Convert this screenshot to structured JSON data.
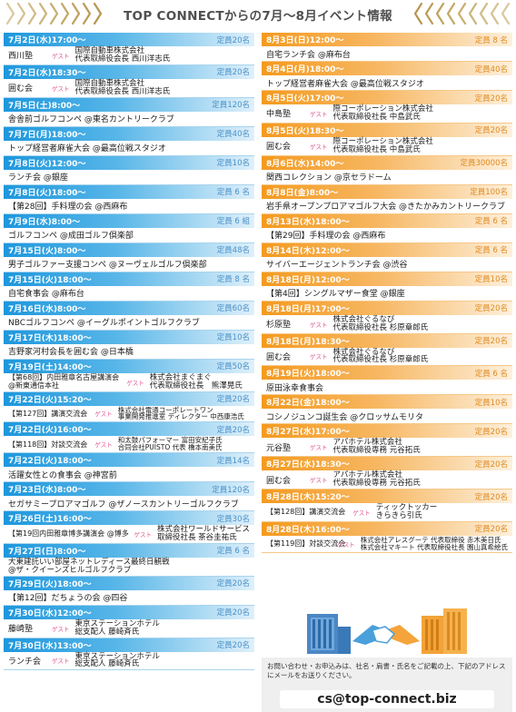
{
  "header": {
    "title": "TOP CONNECTからの7月〜8月イベント情報"
  },
  "left_events": [
    {
      "date": "7月2日(水)17:00〜",
      "capacity": "定員20名",
      "title": "西川塾",
      "guest": "ゲスト",
      "speaker": [
        "国際自動車株式会社",
        "代表取締役会長 西川洋志氏"
      ]
    },
    {
      "date": "7月2日(水)18:30〜",
      "capacity": "定員20名",
      "title": "囲む会",
      "guest": "ゲスト",
      "speaker": [
        "国際自動車株式会社",
        "代表取締役会長 西川洋志氏"
      ]
    },
    {
      "date": "7月5日(土)8:00〜",
      "capacity": "定員120名",
      "title": "舎舎前ゴルフコンペ @東名カントリークラブ"
    },
    {
      "date": "7月7日(月)18:00〜",
      "capacity": "定員40名",
      "title": "トップ経営者麻雀大会 @最高位戦スタジオ"
    },
    {
      "date": "7月8日(火)12:00〜",
      "capacity": "定員10名",
      "title": "ランチ会 @銀座"
    },
    {
      "date": "7月8日(火)18:00〜",
      "capacity": "定員 6 名",
      "title": "【第28回】手料理の会 @西麻布"
    },
    {
      "date": "7月9日(水)8:00〜",
      "capacity": "定員 6 組",
      "title": "ゴルフコンペ @成田ゴルフ倶楽部"
    },
    {
      "date": "7月15日(火)8:00〜",
      "capacity": "定員48名",
      "title": "男子ゴルファー支援コンペ @ヌーヴェルゴルフ倶楽部"
    },
    {
      "date": "7月15日(火)18:00〜",
      "capacity": "定員 8 名",
      "title": "自宅食事会 @麻布台"
    },
    {
      "date": "7月16日(水)8:00〜",
      "capacity": "定員60名",
      "title": "NBCゴルフコンペ @イーグルポイントゴルフクラブ"
    },
    {
      "date": "7月17日(木)18:00〜",
      "capacity": "定員10名",
      "title": "吉野家河村会長を囲む会 @日本橋"
    },
    {
      "date": "7月19日(土)14:00〜",
      "capacity": "定員50名",
      "title": [
        "【第68回】内田雅章名古屋講演会",
        "@新東通信本社"
      ],
      "guest": "ゲスト",
      "speaker": [
        "株式会社まぐまぐ",
        "代表取締役社長　熊澤晃氏"
      ]
    },
    {
      "date": "7月22日(火)15:20〜",
      "capacity": "定員20名",
      "title": "【第127回】講演交流会",
      "guest": "ゲスト",
      "speaker": [
        "株式会社電通コーポレートワン",
        "事業開発推進室 ディレクター 中西康浩氏"
      ]
    },
    {
      "date": "7月22日(火)16:00〜",
      "capacity": "定員20名",
      "title": "【第118回】対談交流会",
      "guest": "ゲスト",
      "speaker": [
        "和太鼓パフォーマー 富田安紀子氏",
        "合同会社PUISTO 代表 橋本南美氏"
      ]
    },
    {
      "date": "7月22日(火)18:00〜",
      "capacity": "定員14名",
      "title": "活躍女性との食事会 @神宮前"
    },
    {
      "date": "7月23日(水)8:00〜",
      "capacity": "定員120名",
      "title": "セガサミープロアマゴルフ @ザノースカントリーゴルフクラブ"
    },
    {
      "date": "7月26日(土)16:00〜",
      "capacity": "定員30名",
      "title": "【第19回内田雅章博多講演会 @博多",
      "guest": "ゲスト",
      "speaker": [
        "株式会社ワールドサービス",
        "取締役社長 茶谷圭祐氏"
      ]
    },
    {
      "date": "7月27日(日)8:00〜",
      "capacity": "定員 6 名",
      "title": [
        "大東建託いい部屋ネットレディース最終日観戦",
        "@ザ・クイーンズヒルゴルフクラブ"
      ]
    },
    {
      "date": "7月29日(火)18:00〜",
      "capacity": "定員20名",
      "title": "【第12回】だちょうの会 @四谷"
    },
    {
      "date": "7月30日(水)12:00〜",
      "capacity": "定員20名",
      "title": "藤崎塾",
      "guest": "ゲスト",
      "speaker": [
        "東京ステーションホテル",
        "総支配人 藤崎斉氏"
      ]
    },
    {
      "date": "7月30日(水)13:00〜",
      "capacity": "定員20名",
      "title": "ランチ会",
      "guest": "ゲスト",
      "speaker": [
        "東京ステーションホテル",
        "総支配人 藤崎斉氏"
      ]
    }
  ],
  "right_events": [
    {
      "date": "8月3日(日)12:00〜",
      "capacity": "定員 8 名",
      "title": "自宅ランチ会 @麻布台"
    },
    {
      "date": "8月4日(月)18:00〜",
      "capacity": "定員40名",
      "title": "トップ経営者麻雀大会 @最高位戦スタジオ"
    },
    {
      "date": "8月5日(火)17:00〜",
      "capacity": "定員20名",
      "title": "中島塾",
      "guest": "ゲスト",
      "speaker": [
        "際コーポレーション株式会社",
        "代表取締役社長 中島武氏"
      ]
    },
    {
      "date": "8月5日(火)18:30〜",
      "capacity": "定員20名",
      "title": "囲む会",
      "guest": "ゲスト",
      "speaker": [
        "際コーポレーション株式会社",
        "代表取締役社長 中島武氏"
      ]
    },
    {
      "date": "8月6日(水)14:00〜",
      "capacity": "定員30000名",
      "title": "関西コレクション @京セラドーム"
    },
    {
      "date": "8月8日(金)8:00〜",
      "capacity": "定員100名",
      "title": "岩手県オープンプロアマゴルフ大会 @きたかみカントリークラブ"
    },
    {
      "date": "8月13日(水)18:00〜",
      "capacity": "定員 6 名",
      "title": "【第29回】手料理の会 @西麻布"
    },
    {
      "date": "8月14日(木)12:00〜",
      "capacity": "定員 6 名",
      "title": "サイバーエージェントランチ会 @渋谷"
    },
    {
      "date": "8月18日(月)12:00〜",
      "capacity": "定員10名",
      "title": "【第4回】シングルマザー食堂 @銀座"
    },
    {
      "date": "8月18日(月)17:00〜",
      "capacity": "定員20名",
      "title": "杉原塾",
      "guest": "ゲスト",
      "speaker": [
        "株式会社ぐるなび",
        "代表取締役社長 杉原章郎氏"
      ]
    },
    {
      "date": "8月18日(月)18:30〜",
      "capacity": "定員20名",
      "title": "囲む会",
      "guest": "ゲスト",
      "speaker": [
        "株式会社ぐるなび",
        "代表取締役社長 杉原章郎氏"
      ]
    },
    {
      "date": "8月19日(火)18:00〜",
      "capacity": "定員 6 名",
      "title": "原田泳幸食事会"
    },
    {
      "date": "8月22日(金)18:00〜",
      "capacity": "定員10名",
      "title": "コシノジュンコ誕生会 @クロッサムモリタ"
    },
    {
      "date": "8月27日(水)17:00〜",
      "capacity": "定員20名",
      "title": "元谷塾",
      "guest": "ゲスト",
      "speaker": [
        "アパホテル株式会社",
        "代表取締役専務 元谷拓氏"
      ]
    },
    {
      "date": "8月27日(水)18:30〜",
      "capacity": "定員20名",
      "title": "囲む会",
      "guest": "ゲスト",
      "speaker": [
        "アパホテル株式会社",
        "代表取締役専務 元谷拓氏"
      ]
    },
    {
      "date": "8月28日(木)15:20〜",
      "capacity": "定員20名",
      "title": "【第128回】講演交流会",
      "guest": "ゲスト",
      "speaker": [
        "ティックトッカー",
        "きらきら引氏"
      ]
    },
    {
      "date": "8月28日(木)16:00〜",
      "capacity": "定員20名",
      "title": "【第119回】対談交流会",
      "guest": "ゲスト",
      "speaker": [
        "株式会社アレスグーテ 代表取締役 赤木美日氏",
        "株式会社マキート 代表取締役社長 園山真希絵氏"
      ]
    }
  ],
  "contact": {
    "text": "お問い合わせ・お申込みは、社名・肩書・氏名をご記載の上、下記のアドレスにメールをお送りください。",
    "email": "cs@top-connect.biz"
  },
  "colors": {
    "left_accent": "#1d97dd",
    "right_accent": "#f49a1f",
    "guest": "#e0508e",
    "header_chevron": "#c9a96a"
  }
}
